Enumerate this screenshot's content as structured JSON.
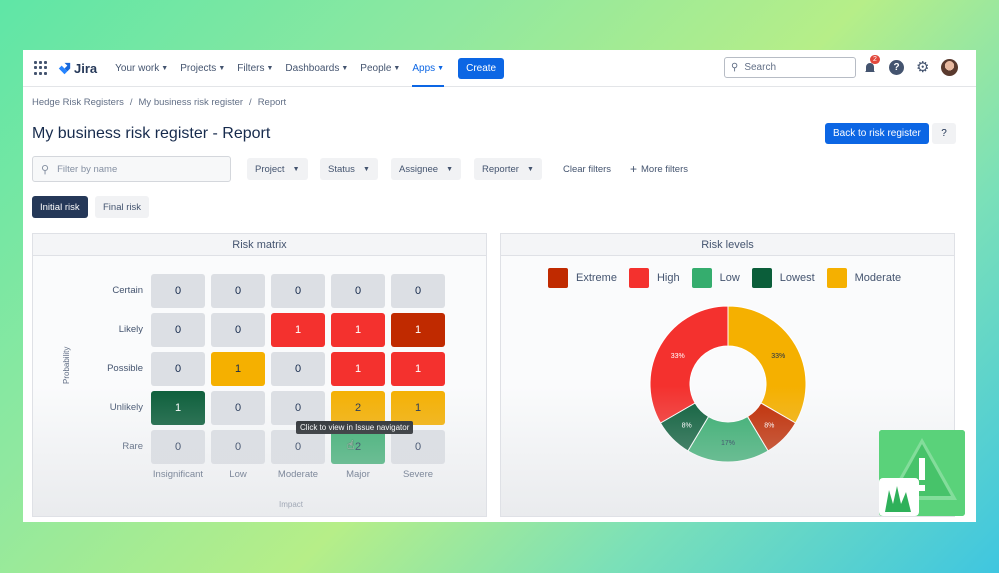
{
  "nav": {
    "logo": "Jira",
    "items": [
      {
        "label": "Your work"
      },
      {
        "label": "Projects"
      },
      {
        "label": "Filters"
      },
      {
        "label": "Dashboards"
      },
      {
        "label": "People"
      },
      {
        "label": "Apps"
      }
    ],
    "create": "Create",
    "search_placeholder": "Search",
    "notification_count": "2",
    "help": "?"
  },
  "breadcrumb": [
    "Hedge Risk Registers",
    "/",
    "My business risk register",
    "/",
    "Report"
  ],
  "page_title": "My business risk register - Report",
  "back_button": "Back to risk register",
  "help_button": "?",
  "filters": {
    "placeholder": "Filter by name",
    "project": "Project",
    "status": "Status",
    "assignee": "Assignee",
    "reporter": "Reporter",
    "clear": "Clear filters",
    "more": "More filters"
  },
  "toggle": {
    "initial": "Initial risk",
    "final": "Final risk"
  },
  "matrix": {
    "title": "Risk matrix",
    "rows": [
      "Certain",
      "Likely",
      "Possible",
      "Unlikely",
      "Rare"
    ],
    "cols": [
      "Insignificant",
      "Low",
      "Moderate",
      "Major",
      "Severe"
    ],
    "values": [
      [
        "0",
        "0",
        "0",
        "0",
        "0"
      ],
      [
        "0",
        "0",
        "1",
        "1",
        "1"
      ],
      [
        "0",
        "1",
        "0",
        "1",
        "1"
      ],
      [
        "1",
        "0",
        "0",
        "2",
        "1"
      ],
      [
        "0",
        "0",
        "0",
        "2",
        "0"
      ]
    ],
    "y_axis": "Probability",
    "x_axis": "Impact",
    "tooltip": "Click to view in Issue navigator"
  },
  "levels": {
    "title": "Risk levels",
    "legend": [
      {
        "name": "Extreme",
        "color": "#c02a00"
      },
      {
        "name": "High",
        "color": "#f4312e"
      },
      {
        "name": "Low",
        "color": "#35ad6e"
      },
      {
        "name": "Lowest",
        "color": "#0b5e3a"
      },
      {
        "name": "Moderate",
        "color": "#f5b000"
      }
    ]
  },
  "chart_data": {
    "type": "pie",
    "title": "Risk levels",
    "categories": [
      "Moderate",
      "Extreme",
      "Low",
      "Lowest",
      "High"
    ],
    "values": [
      33,
      8,
      17,
      8,
      33
    ],
    "labels": [
      "33%",
      "8%",
      "17%",
      "8%",
      "33%"
    ],
    "colors": [
      "#f5b000",
      "#c02a00",
      "#35ad6e",
      "#0b5e3a",
      "#f4312e"
    ],
    "donut": true,
    "legend_position": "top"
  }
}
